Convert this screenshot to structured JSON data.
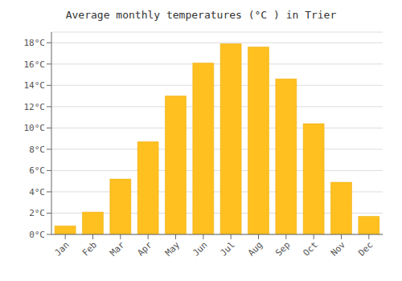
{
  "chart_data": {
    "type": "bar",
    "title": "Average monthly temperatures (°C ) in Trier",
    "categories": [
      "Jan",
      "Feb",
      "Mar",
      "Apr",
      "May",
      "Jun",
      "Jul",
      "Aug",
      "Sep",
      "Oct",
      "Nov",
      "Dec"
    ],
    "values": [
      0.8,
      2.1,
      5.2,
      8.7,
      13.0,
      16.1,
      17.9,
      17.6,
      14.6,
      10.4,
      4.9,
      1.7
    ],
    "color": "#FFC020",
    "ylim": [
      0,
      19
    ],
    "yticks": [
      {
        "value": 0,
        "label": "0°C"
      },
      {
        "value": 2,
        "label": "2°C"
      },
      {
        "value": 4,
        "label": "4°C"
      },
      {
        "value": 6,
        "label": "6°C"
      },
      {
        "value": 8,
        "label": "8°C"
      },
      {
        "value": 10,
        "label": "10°C"
      },
      {
        "value": 12,
        "label": "12°C"
      },
      {
        "value": 14,
        "label": "14°C"
      },
      {
        "value": 16,
        "label": "16°C"
      },
      {
        "value": 18,
        "label": "18°C"
      }
    ],
    "grid": true
  }
}
